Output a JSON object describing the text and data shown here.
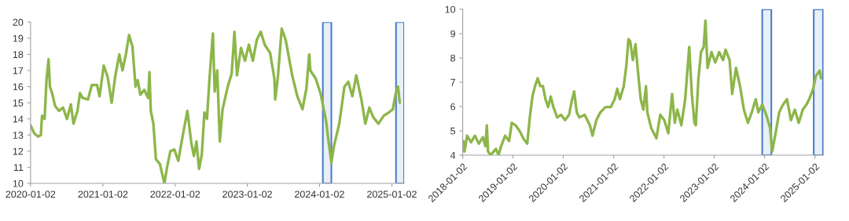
{
  "chart_data": [
    {
      "type": "line",
      "xlim": [
        "2020-01-02",
        "2025-03-05"
      ],
      "ylim": [
        10,
        20
      ],
      "yticks": [
        10,
        11,
        12,
        13,
        14,
        15,
        16,
        17,
        18,
        19,
        20
      ],
      "xticks": [
        {
          "value": "2020-01-02",
          "label": "2020-01-02"
        },
        {
          "value": "2021-01-02",
          "label": "2021-01-02"
        },
        {
          "value": "2022-01-02",
          "label": "2022-01-02"
        },
        {
          "value": "2023-01-02",
          "label": "2023-01-02"
        },
        {
          "value": "2024-01-02",
          "label": "2024-01-02"
        },
        {
          "value": "2025-01-02",
          "label": "2025-01-02"
        }
      ],
      "grid": false,
      "legend": false,
      "marker": "none",
      "line_style": "solid",
      "bands": [
        {
          "axis": "x",
          "from": "2024-01-19",
          "to": "2024-03-02",
          "color": "#4a7ec8"
        },
        {
          "axis": "x",
          "from": "2025-01-23",
          "to": "2025-03-05",
          "color": "#4a7ec8"
        }
      ],
      "series": [
        {
          "color": "#8db64a",
          "x": [
            "2020-01-02",
            "2020-01-21",
            "2020-02-09",
            "2020-02-23",
            "2020-02-29",
            "2020-03-13",
            "2020-03-23",
            "2020-04-02",
            "2020-04-09",
            "2020-04-22",
            "2020-05-05",
            "2020-05-25",
            "2020-06-14",
            "2020-07-04",
            "2020-07-24",
            "2020-08-06",
            "2020-08-26",
            "2020-09-08",
            "2020-09-21",
            "2020-10-18",
            "2020-11-07",
            "2020-12-03",
            "2020-12-16",
            "2021-01-06",
            "2021-01-26",
            "2021-02-15",
            "2021-03-06",
            "2021-03-26",
            "2021-04-11",
            "2021-04-28",
            "2021-05-14",
            "2021-05-31",
            "2021-06-16",
            "2021-06-27",
            "2021-07-10",
            "2021-07-30",
            "2021-08-19",
            "2021-08-25",
            "2021-09-01",
            "2021-09-14",
            "2021-09-27",
            "2021-10-17",
            "2021-11-09",
            "2021-11-22",
            "2021-12-09",
            "2021-12-29",
            "2022-01-18",
            "2022-02-07",
            "2022-03-05",
            "2022-03-25",
            "2022-04-07",
            "2022-04-20",
            "2022-05-03",
            "2022-05-17",
            "2022-05-30",
            "2022-06-12",
            "2022-06-25",
            "2022-07-02",
            "2022-07-12",
            "2022-07-21",
            "2022-08-03",
            "2022-08-16",
            "2022-08-30",
            "2022-09-25",
            "2022-10-15",
            "2022-10-29",
            "2022-11-11",
            "2022-12-01",
            "2022-12-21",
            "2023-01-10",
            "2023-01-30",
            "2023-02-19",
            "2023-03-11",
            "2023-03-31",
            "2023-04-27",
            "2023-05-19",
            "2023-05-23",
            "2023-06-05",
            "2023-06-25",
            "2023-07-15",
            "2023-08-17",
            "2023-09-12",
            "2023-10-08",
            "2023-10-28",
            "2023-11-11",
            "2023-11-17",
            "2023-12-14",
            "2024-01-09",
            "2024-02-04",
            "2024-02-17",
            "2024-03-02",
            "2024-03-15",
            "2024-04-11",
            "2024-05-07",
            "2024-05-27",
            "2024-06-16",
            "2024-07-06",
            "2024-08-01",
            "2024-08-21",
            "2024-09-10",
            "2024-09-30",
            "2024-10-26",
            "2024-11-22",
            "2024-12-18",
            "2025-01-07",
            "2025-01-20",
            "2025-02-02",
            "2025-02-11"
          ],
          "values": [
            13.6,
            13.1,
            12.9,
            13.0,
            14.2,
            14.0,
            16.5,
            17.7,
            16.0,
            15.5,
            14.8,
            14.5,
            14.7,
            14.0,
            14.9,
            13.7,
            14.5,
            15.6,
            15.3,
            15.2,
            16.1,
            16.1,
            15.4,
            17.3,
            16.6,
            15.0,
            16.7,
            18.0,
            17.0,
            18.0,
            19.2,
            18.5,
            16.0,
            16.4,
            15.5,
            15.8,
            15.3,
            16.9,
            14.5,
            13.7,
            11.5,
            11.2,
            10.0,
            11.0,
            12.0,
            12.1,
            11.4,
            12.8,
            14.5,
            12.5,
            11.7,
            12.6,
            10.9,
            11.8,
            14.4,
            14.0,
            16.5,
            17.7,
            19.3,
            15.7,
            17.0,
            12.6,
            14.6,
            16.0,
            16.8,
            19.4,
            16.7,
            18.4,
            17.6,
            18.6,
            17.6,
            18.9,
            19.4,
            18.6,
            18.1,
            16.5,
            15.2,
            16.5,
            19.6,
            18.9,
            16.7,
            15.4,
            14.6,
            15.9,
            18.0,
            17.0,
            16.5,
            15.5,
            13.9,
            12.6,
            11.3,
            12.3,
            13.7,
            16.0,
            16.3,
            15.4,
            16.7,
            15.2,
            13.7,
            14.7,
            14.1,
            13.7,
            14.2,
            14.4,
            14.6,
            15.5,
            16.0,
            15.0
          ]
        }
      ]
    },
    {
      "type": "line",
      "xlim": [
        "2018-01-02",
        "2025-03-05"
      ],
      "ylim": [
        4,
        10
      ],
      "yticks": [
        4,
        5,
        6,
        7,
        8,
        9,
        10
      ],
      "xticks": [
        {
          "value": "2018-01-02",
          "label": "2018-01-02"
        },
        {
          "value": "2019-01-02",
          "label": "2019-01-02"
        },
        {
          "value": "2020-01-02",
          "label": "2020-01-02"
        },
        {
          "value": "2021-01-02",
          "label": "2021-01-02"
        },
        {
          "value": "2022-01-02",
          "label": "2022-01-02"
        },
        {
          "value": "2023-01-02",
          "label": "2023-01-02"
        },
        {
          "value": "2024-01-02",
          "label": "2024-01-02"
        },
        {
          "value": "2025-01-02",
          "label": "2025-01-02"
        }
      ],
      "grid": false,
      "legend": false,
      "marker": "none",
      "line_style": "solid",
      "bands": [
        {
          "axis": "x",
          "from": "2023-12-16",
          "to": "2024-02-20",
          "color": "#4a7ec8"
        },
        {
          "axis": "x",
          "from": "2024-12-24",
          "to": "2025-03-01",
          "color": "#4a7ec8"
        }
      ],
      "series": [
        {
          "color": "#8db64a",
          "x": [
            "2018-01-06",
            "2018-01-15",
            "2018-02-03",
            "2018-03-03",
            "2018-04-01",
            "2018-04-29",
            "2018-05-28",
            "2018-06-16",
            "2018-06-26",
            "2018-07-05",
            "2018-07-24",
            "2018-08-31",
            "2018-09-19",
            "2018-10-08",
            "2018-11-06",
            "2018-12-05",
            "2018-12-24",
            "2019-01-20",
            "2019-02-18",
            "2019-03-18",
            "2019-04-15",
            "2019-05-04",
            "2019-05-23",
            "2019-06-11",
            "2019-06-30",
            "2019-07-19",
            "2019-08-07",
            "2019-08-26",
            "2019-09-14",
            "2019-10-03",
            "2019-10-22",
            "2019-11-19",
            "2019-12-17",
            "2020-01-15",
            "2020-02-13",
            "2020-03-02",
            "2020-03-21",
            "2020-04-09",
            "2020-04-28",
            "2020-06-05",
            "2020-07-13",
            "2020-08-01",
            "2020-08-29",
            "2020-09-27",
            "2020-11-04",
            "2020-12-12",
            "2021-01-09",
            "2021-01-28",
            "2021-02-16",
            "2021-03-16",
            "2021-04-04",
            "2021-04-19",
            "2021-05-02",
            "2021-05-21",
            "2021-06-09",
            "2021-06-28",
            "2021-07-17",
            "2021-08-05",
            "2021-08-24",
            "2021-09-03",
            "2021-10-01",
            "2021-11-08",
            "2021-12-06",
            "2022-01-04",
            "2022-02-02",
            "2022-03-02",
            "2022-03-21",
            "2022-04-09",
            "2022-05-08",
            "2022-06-05",
            "2022-07-04",
            "2022-07-23",
            "2022-08-11",
            "2022-08-21",
            "2022-09-09",
            "2022-09-28",
            "2022-10-17",
            "2022-10-30",
            "2022-11-14",
            "2022-12-13",
            "2023-01-09",
            "2023-02-07",
            "2023-03-07",
            "2023-03-25",
            "2023-04-23",
            "2023-05-12",
            "2023-06-09",
            "2023-07-08",
            "2023-08-05",
            "2023-09-03",
            "2023-10-01",
            "2023-10-30",
            "2023-11-18",
            "2023-12-16",
            "2024-01-14",
            "2024-02-11",
            "2024-02-26",
            "2024-03-19",
            "2024-04-17",
            "2024-05-16",
            "2024-06-13",
            "2024-07-11",
            "2024-08-09",
            "2024-09-06",
            "2024-10-05",
            "2024-11-02",
            "2024-11-21",
            "2024-12-20",
            "2025-01-09",
            "2025-02-06",
            "2025-02-15"
          ],
          "values": [
            4.58,
            4.15,
            4.8,
            4.53,
            4.8,
            4.47,
            4.74,
            4.37,
            5.23,
            4.15,
            4.0,
            4.26,
            4.0,
            4.37,
            4.8,
            4.58,
            5.33,
            5.23,
            5.01,
            4.69,
            4.47,
            5.55,
            6.41,
            6.84,
            7.16,
            6.84,
            6.84,
            6.3,
            5.98,
            6.41,
            5.98,
            5.55,
            5.66,
            5.44,
            5.66,
            6.19,
            6.62,
            5.76,
            5.55,
            5.66,
            5.23,
            4.8,
            5.44,
            5.76,
            5.98,
            5.98,
            6.3,
            6.73,
            6.3,
            6.84,
            7.7,
            8.77,
            8.67,
            7.91,
            8.56,
            7.38,
            6.3,
            5.87,
            6.84,
            5.76,
            5.12,
            4.69,
            5.66,
            5.44,
            4.9,
            6.52,
            5.33,
            5.87,
            5.23,
            6.3,
            8.45,
            6.52,
            5.33,
            5.23,
            7.16,
            8.24,
            8.45,
            9.53,
            7.59,
            8.24,
            7.81,
            8.24,
            7.91,
            8.34,
            7.91,
            6.52,
            7.59,
            6.84,
            5.87,
            5.33,
            5.76,
            6.3,
            5.76,
            6.09,
            5.66,
            5.12,
            4.15,
            4.8,
            5.76,
            6.09,
            6.3,
            5.44,
            5.87,
            5.33,
            5.87,
            6.09,
            6.3,
            6.73,
            7.27,
            7.48,
            7.16
          ]
        }
      ]
    }
  ]
}
